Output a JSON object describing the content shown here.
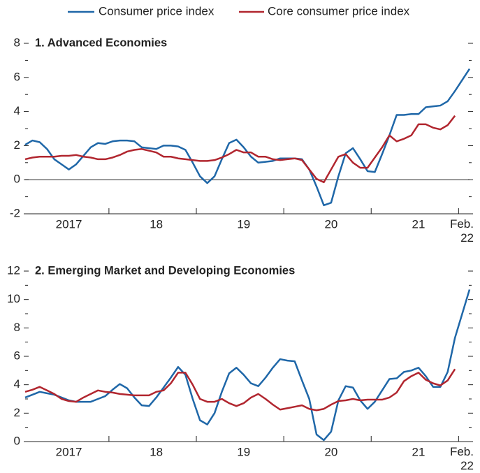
{
  "chart_data": [
    {
      "type": "line",
      "title": "1. Advanced Economies",
      "categories": [
        null,
        null,
        null,
        null,
        null,
        null,
        "2017",
        null,
        null,
        null,
        null,
        null,
        null,
        null,
        null,
        null,
        null,
        null,
        "18",
        null,
        null,
        null,
        null,
        null,
        null,
        null,
        null,
        null,
        null,
        null,
        "19",
        null,
        null,
        null,
        null,
        null,
        null,
        null,
        null,
        null,
        null,
        null,
        "20",
        null,
        null,
        null,
        null,
        null,
        null,
        null,
        null,
        null,
        null,
        null,
        "21",
        null,
        null,
        null,
        null,
        null,
        null,
        "Feb. 22"
      ],
      "series": [
        {
          "name": "Consumer price index",
          "color": "#1f67a8",
          "values": [
            2.05,
            2.3,
            2.2,
            1.8,
            1.2,
            0.9,
            0.6,
            0.9,
            1.4,
            1.9,
            2.15,
            2.1,
            2.25,
            2.3,
            2.3,
            2.25,
            1.9,
            1.85,
            1.8,
            2.0,
            2.0,
            1.95,
            1.75,
            1.0,
            0.2,
            -0.2,
            0.2,
            1.2,
            2.15,
            2.35,
            1.9,
            1.35,
            1.0,
            1.05,
            1.1,
            1.25,
            1.25,
            1.25,
            1.2,
            0.6,
            -0.4,
            -1.5,
            -1.35,
            0.2,
            1.55,
            1.85,
            1.2,
            0.5,
            0.45,
            1.5,
            2.6,
            3.8,
            3.8,
            3.85,
            3.85,
            4.25,
            4.3,
            4.35,
            4.6,
            5.2,
            5.85,
            6.5
          ]
        },
        {
          "name": "Core consumer price index",
          "color": "#b1262f",
          "values": [
            1.2,
            1.3,
            1.35,
            1.35,
            1.35,
            1.4,
            1.4,
            1.45,
            1.35,
            1.3,
            1.2,
            1.2,
            1.3,
            1.45,
            1.65,
            1.75,
            1.8,
            1.7,
            1.6,
            1.35,
            1.35,
            1.25,
            1.2,
            1.15,
            1.1,
            1.1,
            1.15,
            1.3,
            1.5,
            1.75,
            1.6,
            1.6,
            1.35,
            1.35,
            1.2,
            1.15,
            1.2,
            1.25,
            1.15,
            0.6,
            0.05,
            -0.15,
            0.6,
            1.35,
            1.5,
            1.0,
            0.7,
            0.7,
            1.3,
            1.9,
            2.6,
            2.25,
            2.4,
            2.6,
            3.25,
            3.25,
            3.05,
            2.95,
            3.2,
            3.75,
            null,
            null
          ]
        }
      ],
      "ylim": [
        -2,
        8
      ],
      "yticks": [
        -2,
        0,
        2,
        4,
        6,
        8
      ],
      "zero_line": true
    },
    {
      "type": "line",
      "title": "2. Emerging Market and Developing Economies",
      "categories": [
        null,
        null,
        null,
        null,
        null,
        null,
        "2017",
        null,
        null,
        null,
        null,
        null,
        null,
        null,
        null,
        null,
        null,
        null,
        "18",
        null,
        null,
        null,
        null,
        null,
        null,
        null,
        null,
        null,
        null,
        null,
        "19",
        null,
        null,
        null,
        null,
        null,
        null,
        null,
        null,
        null,
        null,
        null,
        "20",
        null,
        null,
        null,
        null,
        null,
        null,
        null,
        null,
        null,
        null,
        null,
        "21",
        null,
        null,
        null,
        null,
        null,
        null,
        "Feb. 22"
      ],
      "series": [
        {
          "color": "#1f67a8",
          "values": [
            3.1,
            3.3,
            3.5,
            3.4,
            3.3,
            3.1,
            2.9,
            2.8,
            2.8,
            2.8,
            3.0,
            3.2,
            3.65,
            4.05,
            3.75,
            3.1,
            2.55,
            2.5,
            3.1,
            3.8,
            4.5,
            5.25,
            4.7,
            3.0,
            1.5,
            1.2,
            2.0,
            3.5,
            4.8,
            5.2,
            4.7,
            4.1,
            3.9,
            4.5,
            5.2,
            5.8,
            5.7,
            5.65,
            4.3,
            3.0,
            0.5,
            0.1,
            0.7,
            2.9,
            3.9,
            3.8,
            2.9,
            2.3,
            2.8,
            3.6,
            4.4,
            4.45,
            4.9,
            5.0,
            5.2,
            4.6,
            3.85,
            3.85,
            4.9,
            7.3,
            9.0,
            10.7
          ]
        },
        {
          "color": "#b1262f",
          "values": [
            3.5,
            3.65,
            3.85,
            3.6,
            3.35,
            3.0,
            2.85,
            2.8,
            3.1,
            3.35,
            3.6,
            3.5,
            3.45,
            3.35,
            3.3,
            3.25,
            3.25,
            3.25,
            3.5,
            3.6,
            4.1,
            4.85,
            4.85,
            4.0,
            3.0,
            2.8,
            2.8,
            3.0,
            2.7,
            2.5,
            2.7,
            3.1,
            3.35,
            3.0,
            2.6,
            2.25,
            2.35,
            2.45,
            2.55,
            2.3,
            2.2,
            2.3,
            2.6,
            2.85,
            2.9,
            3.0,
            2.9,
            2.95,
            2.95,
            2.95,
            3.1,
            3.45,
            4.25,
            4.6,
            4.85,
            4.35,
            4.1,
            3.95,
            4.3,
            5.1,
            null,
            null
          ]
        }
      ],
      "ylim": [
        0,
        12
      ],
      "yticks": [
        0,
        2,
        4,
        6,
        8,
        10,
        12
      ]
    }
  ]
}
